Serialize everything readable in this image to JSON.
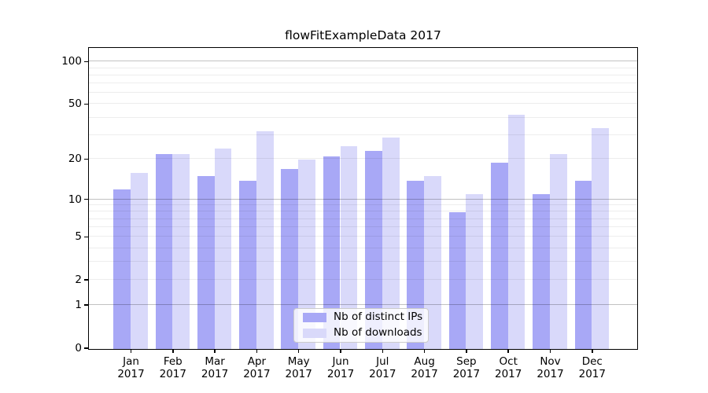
{
  "chart_data": {
    "type": "bar",
    "title": "flowFitExampleData 2017",
    "y_scale": "log1p",
    "ylim": [
      0,
      124
    ],
    "grid": true,
    "legend_position": "lower center",
    "year": "2017",
    "categories_month": [
      "Jan",
      "Feb",
      "Mar",
      "Apr",
      "May",
      "Jun",
      "Jul",
      "Aug",
      "Sep",
      "Oct",
      "Nov",
      "Dec"
    ],
    "series": [
      {
        "name": "Nb of distinct IPs",
        "color": "#a8a8f6",
        "values": [
          12,
          22,
          15,
          14,
          17,
          21,
          23,
          14,
          8,
          19,
          11,
          14
        ]
      },
      {
        "name": "Nb of downloads",
        "color": "#d9d9fa",
        "values": [
          16,
          22,
          24,
          32,
          20,
          25,
          29,
          15,
          11,
          42,
          22,
          34
        ]
      }
    ],
    "y_ticks_labeled": [
      0,
      1,
      2,
      5,
      10,
      20,
      50,
      100
    ],
    "y_grid_major": [
      1,
      10,
      100
    ],
    "y_grid_minor": [
      2,
      3,
      4,
      5,
      6,
      7,
      8,
      9,
      20,
      30,
      40,
      50,
      60,
      70,
      80,
      90
    ]
  },
  "colors": {
    "distinct_ips_bar": "#a8a8f6",
    "downloads_bar": "#d9d9fa",
    "grid_major": "#bdbdbd",
    "grid_minor": "#ebebeb",
    "axis": "#000000",
    "legend_border": "#cbcbcb",
    "background": "#ffffff"
  }
}
